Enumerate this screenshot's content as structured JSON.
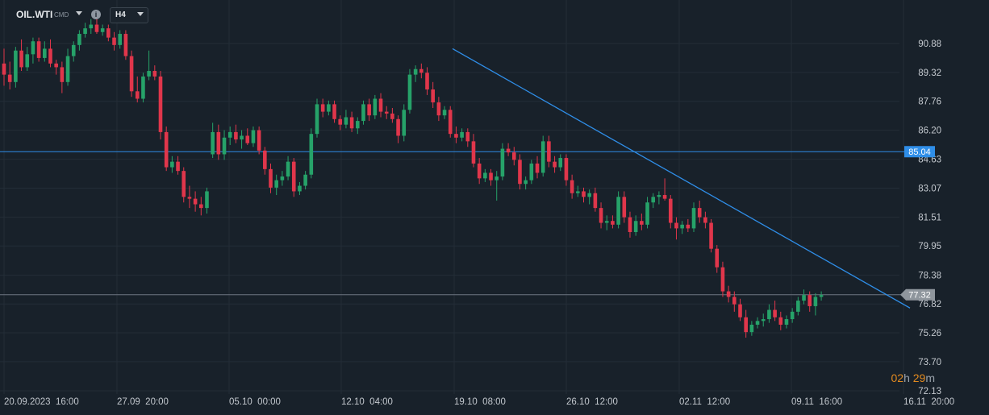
{
  "toolbar": {
    "symbol": "OIL.WTI",
    "symbol_sub": "CMD",
    "info_icon": "info-icon",
    "timeframe": "H4"
  },
  "timer": {
    "hours": "02",
    "h_unit": "h",
    "minutes": "29",
    "m_unit": "m"
  },
  "chart_data": {
    "type": "candlestick",
    "title": "",
    "xlabel": "",
    "ylabel": "",
    "ylim": [
      72.13,
      92.0
    ],
    "grid": true,
    "colors": {
      "up": "#26a269",
      "down": "#e0364b",
      "background": "#18212a",
      "grid": "#232d37",
      "level": "#2f8ee8",
      "trend": "#2f8ee8"
    },
    "y_ticks": [
      "90.88",
      "89.32",
      "87.76",
      "86.20",
      "84.63",
      "83.07",
      "81.51",
      "79.95",
      "78.38",
      "76.82",
      "75.26",
      "73.70",
      "72.13"
    ],
    "x_ticks": [
      "20.09.2023  16:00",
      "27.09  20:00",
      "05.10  00:00",
      "12.10  04:00",
      "19.10  08:00",
      "26.10  12:00",
      "02.11  12:00",
      "09.11  16:00",
      "16.11  20:00"
    ],
    "horizontal_line": {
      "value": 85.04,
      "label": "85.04"
    },
    "current_price": {
      "value": 77.32,
      "label": "77.32"
    },
    "trendline": {
      "start": [
        "19.10 04:00",
        90.6
      ],
      "end": [
        "16.11 20:00",
        76.6
      ]
    },
    "candles": [
      [
        89.8,
        90.6,
        88.6,
        89.2
      ],
      [
        89.2,
        89.9,
        88.4,
        88.8
      ],
      [
        88.8,
        90.7,
        88.5,
        90.5
      ],
      [
        90.5,
        91.1,
        89.4,
        89.6
      ],
      [
        89.6,
        90.7,
        89.4,
        90.3
      ],
      [
        90.3,
        91.2,
        89.8,
        91.0
      ],
      [
        91.0,
        91.2,
        89.9,
        90.1
      ],
      [
        90.1,
        91.0,
        89.9,
        90.6
      ],
      [
        90.6,
        91.1,
        89.6,
        89.8
      ],
      [
        89.8,
        90.0,
        89.2,
        89.6
      ],
      [
        89.6,
        89.9,
        88.2,
        88.8
      ],
      [
        88.8,
        90.6,
        88.6,
        90.2
      ],
      [
        90.2,
        91.0,
        89.9,
        90.8
      ],
      [
        90.8,
        91.6,
        90.5,
        91.4
      ],
      [
        91.4,
        92.0,
        91.2,
        91.7
      ],
      [
        91.7,
        92.2,
        91.4,
        91.9
      ],
      [
        91.9,
        92.3,
        91.4,
        91.5
      ],
      [
        91.5,
        91.9,
        91.3,
        91.7
      ],
      [
        91.7,
        91.9,
        91.0,
        91.2
      ],
      [
        91.2,
        91.5,
        90.5,
        90.8
      ],
      [
        90.8,
        91.6,
        90.6,
        91.4
      ],
      [
        91.4,
        91.6,
        90.0,
        90.2
      ],
      [
        90.2,
        90.5,
        88.0,
        88.3
      ],
      [
        88.3,
        89.1,
        87.7,
        87.9
      ],
      [
        87.9,
        89.3,
        87.7,
        89.1
      ],
      [
        89.1,
        90.5,
        88.9,
        89.4
      ],
      [
        89.4,
        89.7,
        88.9,
        89.1
      ],
      [
        89.1,
        89.4,
        85.7,
        86.1
      ],
      [
        86.1,
        86.4,
        84.0,
        84.2
      ],
      [
        84.2,
        84.8,
        83.9,
        84.5
      ],
      [
        84.5,
        84.8,
        83.8,
        84.0
      ],
      [
        84.0,
        84.2,
        82.3,
        82.6
      ],
      [
        82.6,
        83.2,
        82.0,
        82.5
      ],
      [
        82.5,
        82.9,
        81.8,
        82.2
      ],
      [
        82.2,
        82.6,
        81.6,
        82.0
      ],
      [
        82.0,
        83.1,
        81.7,
        82.9
      ],
      [
        84.9,
        86.6,
        84.7,
        86.1
      ],
      [
        86.1,
        86.5,
        84.6,
        84.9
      ],
      [
        84.9,
        86.2,
        84.6,
        85.8
      ],
      [
        85.8,
        86.4,
        85.4,
        86.1
      ],
      [
        86.1,
        86.5,
        85.5,
        85.7
      ],
      [
        85.7,
        86.2,
        85.2,
        85.9
      ],
      [
        85.9,
        86.3,
        85.4,
        85.5
      ],
      [
        85.5,
        86.4,
        85.3,
        86.2
      ],
      [
        86.2,
        86.4,
        84.9,
        85.1
      ],
      [
        85.1,
        85.3,
        83.8,
        84.1
      ],
      [
        84.1,
        84.4,
        82.8,
        83.1
      ],
      [
        83.1,
        83.8,
        82.7,
        83.5
      ],
      [
        83.5,
        84.0,
        83.2,
        83.7
      ],
      [
        83.7,
        84.8,
        83.5,
        84.5
      ],
      [
        84.5,
        84.7,
        82.6,
        82.9
      ],
      [
        82.9,
        83.4,
        82.7,
        83.2
      ],
      [
        83.2,
        84.0,
        83.0,
        83.8
      ],
      [
        83.8,
        86.3,
        83.6,
        86.0
      ],
      [
        86.0,
        87.9,
        85.8,
        87.6
      ],
      [
        87.6,
        87.9,
        86.9,
        87.2
      ],
      [
        87.2,
        87.8,
        87.0,
        87.6
      ],
      [
        87.6,
        87.8,
        86.6,
        86.8
      ],
      [
        86.8,
        87.0,
        86.2,
        86.5
      ],
      [
        86.5,
        87.3,
        86.3,
        86.9
      ],
      [
        86.9,
        87.2,
        86.1,
        86.3
      ],
      [
        86.3,
        86.9,
        86.0,
        86.7
      ],
      [
        86.7,
        87.8,
        86.5,
        87.6
      ],
      [
        87.6,
        87.9,
        86.7,
        87.0
      ],
      [
        87.0,
        88.1,
        86.8,
        87.9
      ],
      [
        87.9,
        88.2,
        86.9,
        87.2
      ],
      [
        87.2,
        87.5,
        86.8,
        87.1
      ],
      [
        87.1,
        87.4,
        86.6,
        86.8
      ],
      [
        86.8,
        87.0,
        85.5,
        85.9
      ],
      [
        85.9,
        87.6,
        85.6,
        87.3
      ],
      [
        87.3,
        89.5,
        87.1,
        89.2
      ],
      [
        89.2,
        89.7,
        88.8,
        89.5
      ],
      [
        89.5,
        89.8,
        89.0,
        89.3
      ],
      [
        89.3,
        89.6,
        88.1,
        88.4
      ],
      [
        88.4,
        88.8,
        87.4,
        87.7
      ],
      [
        87.7,
        88.0,
        86.7,
        87.0
      ],
      [
        87.0,
        87.5,
        86.8,
        87.3
      ],
      [
        87.3,
        87.5,
        85.8,
        86.0
      ],
      [
        86.0,
        86.4,
        85.5,
        85.8
      ],
      [
        85.8,
        86.3,
        85.6,
        86.1
      ],
      [
        86.1,
        86.3,
        85.3,
        85.6
      ],
      [
        85.6,
        86.0,
        84.2,
        84.4
      ],
      [
        84.4,
        84.7,
        83.3,
        83.6
      ],
      [
        83.6,
        84.1,
        83.4,
        83.9
      ],
      [
        83.9,
        84.1,
        83.2,
        83.5
      ],
      [
        83.5,
        84.0,
        82.4,
        83.7
      ],
      [
        83.7,
        85.5,
        83.5,
        85.2
      ],
      [
        85.2,
        85.5,
        84.8,
        85.0
      ],
      [
        85.0,
        85.3,
        84.3,
        84.6
      ],
      [
        84.6,
        84.9,
        83.0,
        83.3
      ],
      [
        83.3,
        83.7,
        83.0,
        83.5
      ],
      [
        83.5,
        84.6,
        83.3,
        84.4
      ],
      [
        84.4,
        84.8,
        83.6,
        83.9
      ],
      [
        83.9,
        85.9,
        83.7,
        85.6
      ],
      [
        85.6,
        85.9,
        84.2,
        84.5
      ],
      [
        84.5,
        84.8,
        83.9,
        84.2
      ],
      [
        84.2,
        84.9,
        84.0,
        84.7
      ],
      [
        84.7,
        84.9,
        83.2,
        83.5
      ],
      [
        83.5,
        83.8,
        82.5,
        82.8
      ],
      [
        82.8,
        83.2,
        82.6,
        82.9
      ],
      [
        82.9,
        83.1,
        82.3,
        82.6
      ],
      [
        82.6,
        83.0,
        82.2,
        82.8
      ],
      [
        82.8,
        83.1,
        81.8,
        82.0
      ],
      [
        82.0,
        82.3,
        80.9,
        81.2
      ],
      [
        81.2,
        81.6,
        80.8,
        81.3
      ],
      [
        81.3,
        81.6,
        80.9,
        81.1
      ],
      [
        81.1,
        82.9,
        80.9,
        82.6
      ],
      [
        82.6,
        82.9,
        81.2,
        81.5
      ],
      [
        81.5,
        81.8,
        80.4,
        80.7
      ],
      [
        80.7,
        81.6,
        80.5,
        81.3
      ],
      [
        81.3,
        81.7,
        80.8,
        81.1
      ],
      [
        81.1,
        82.6,
        80.9,
        82.3
      ],
      [
        82.3,
        82.8,
        82.0,
        82.6
      ],
      [
        82.6,
        82.9,
        82.2,
        82.7
      ],
      [
        82.7,
        83.6,
        82.4,
        82.5
      ],
      [
        82.5,
        82.7,
        80.9,
        81.2
      ],
      [
        81.2,
        81.5,
        80.3,
        80.9
      ],
      [
        80.9,
        81.3,
        80.6,
        81.1
      ],
      [
        81.1,
        81.4,
        80.7,
        80.9
      ],
      [
        80.9,
        82.3,
        80.7,
        82.0
      ],
      [
        82.0,
        82.4,
        81.2,
        81.5
      ],
      [
        81.5,
        81.8,
        80.9,
        81.2
      ],
      [
        81.2,
        81.4,
        79.6,
        79.8
      ],
      [
        79.8,
        80.0,
        78.5,
        78.8
      ],
      [
        78.8,
        79.1,
        77.2,
        77.5
      ],
      [
        77.5,
        77.8,
        76.9,
        77.2
      ],
      [
        77.2,
        77.5,
        76.4,
        76.8
      ],
      [
        76.8,
        77.1,
        75.9,
        76.1
      ],
      [
        76.1,
        76.5,
        75.0,
        75.3
      ],
      [
        75.3,
        75.9,
        75.1,
        75.7
      ],
      [
        75.7,
        76.1,
        75.5,
        75.9
      ],
      [
        75.9,
        76.3,
        75.6,
        76.0
      ],
      [
        76.0,
        76.8,
        75.8,
        76.5
      ],
      [
        76.5,
        77.0,
        75.9,
        76.1
      ],
      [
        76.1,
        76.4,
        75.4,
        75.7
      ],
      [
        75.7,
        76.2,
        75.5,
        76.0
      ],
      [
        76.0,
        76.6,
        75.8,
        76.4
      ],
      [
        76.4,
        77.2,
        76.2,
        77.0
      ],
      [
        77.0,
        77.6,
        76.8,
        77.3
      ],
      [
        77.3,
        77.5,
        76.4,
        76.7
      ],
      [
        76.7,
        77.4,
        76.2,
        77.2
      ],
      [
        77.2,
        77.5,
        77.0,
        77.3
      ]
    ]
  }
}
